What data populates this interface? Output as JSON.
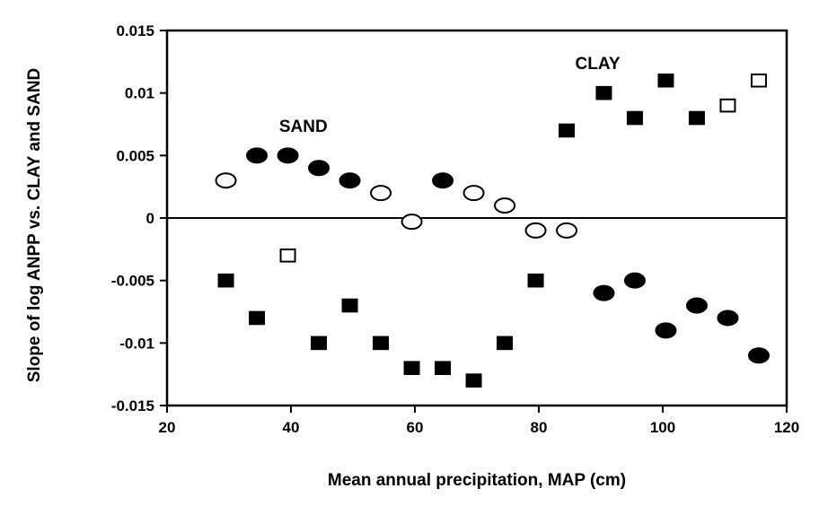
{
  "chart_data": {
    "type": "scatter",
    "xlabel": "Mean annual precipitation, MAP (cm)",
    "ylabel": "Slope of log ANPP vs. CLAY and SAND",
    "xlim": [
      20,
      120
    ],
    "ylim": [
      -0.015,
      0.015
    ],
    "x_ticks": [
      "20",
      "40",
      "60",
      "80",
      "100",
      "120"
    ],
    "y_ticks": [
      "-0.015",
      "-0.01",
      "-0.005",
      "0",
      "0.005",
      "0.01",
      "0.015"
    ],
    "grid": false,
    "annotations": [
      {
        "text": "SAND",
        "x": 42,
        "y": 0.0069
      },
      {
        "text": "CLAY",
        "x": 89.5,
        "y": 0.0119
      }
    ],
    "series": [
      {
        "group": "SAND",
        "marker": "circle",
        "fill": "filled",
        "color": "#000000",
        "points": [
          [
            34.5,
            0.005
          ],
          [
            39.5,
            0.005
          ],
          [
            44.5,
            0.004
          ],
          [
            49.5,
            0.003
          ],
          [
            64.5,
            0.003
          ],
          [
            90.5,
            -0.006
          ],
          [
            95.5,
            -0.005
          ],
          [
            100.5,
            -0.009
          ],
          [
            105.5,
            -0.007
          ],
          [
            110.5,
            -0.008
          ],
          [
            115.5,
            -0.011
          ]
        ]
      },
      {
        "group": "SAND",
        "marker": "circle",
        "fill": "open",
        "color": "#000000",
        "points": [
          [
            29.5,
            0.003
          ],
          [
            54.5,
            0.002
          ],
          [
            59.5,
            -0.0003
          ],
          [
            69.5,
            0.002
          ],
          [
            74.5,
            0.001
          ],
          [
            79.5,
            -0.001
          ],
          [
            84.5,
            -0.001
          ]
        ]
      },
      {
        "group": "CLAY",
        "marker": "square",
        "fill": "filled",
        "color": "#000000",
        "points": [
          [
            29.5,
            -0.005
          ],
          [
            34.5,
            -0.008
          ],
          [
            44.5,
            -0.01
          ],
          [
            49.5,
            -0.007
          ],
          [
            54.5,
            -0.01
          ],
          [
            59.5,
            -0.012
          ],
          [
            64.5,
            -0.012
          ],
          [
            69.5,
            -0.013
          ],
          [
            74.5,
            -0.01
          ],
          [
            79.5,
            -0.005
          ],
          [
            84.5,
            0.007
          ],
          [
            90.5,
            0.01
          ],
          [
            95.5,
            0.008
          ],
          [
            100.5,
            0.011
          ],
          [
            105.5,
            0.008
          ]
        ]
      },
      {
        "group": "CLAY",
        "marker": "square",
        "fill": "open",
        "color": "#000000",
        "points": [
          [
            39.5,
            -0.003
          ],
          [
            110.5,
            0.009
          ],
          [
            115.5,
            0.011
          ]
        ]
      }
    ]
  }
}
